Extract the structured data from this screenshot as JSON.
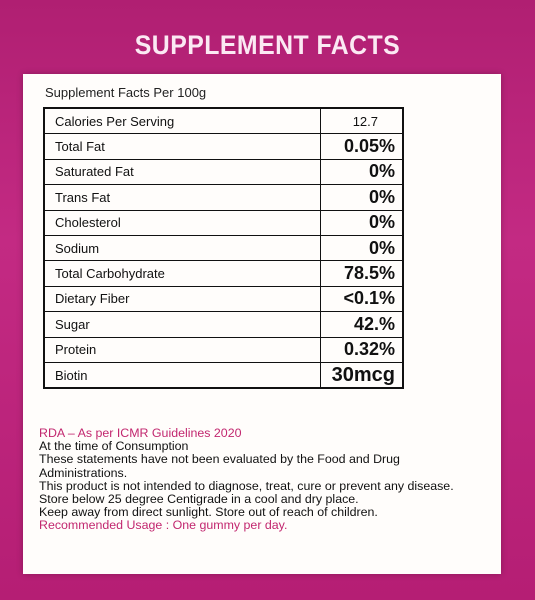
{
  "title": "SUPPLEMENT FACTS",
  "panel_header": "Supplement Facts Per 100g",
  "rows": [
    {
      "name": "Calories Per Serving",
      "value": "12.7"
    },
    {
      "name": "Total Fat",
      "value": "0.05%"
    },
    {
      "name": "Saturated Fat",
      "value": "0%"
    },
    {
      "name": "Trans Fat",
      "value": "0%"
    },
    {
      "name": "Cholesterol",
      "value": "0%"
    },
    {
      "name": "Sodium",
      "value": "0%"
    },
    {
      "name": "Total Carbohydrate",
      "value": "78.5%"
    },
    {
      "name": "Dietary Fiber",
      "value": "<0.1%"
    },
    {
      "name": "Sugar",
      "value": "42.%"
    },
    {
      "name": "Protein",
      "value": "0.32%"
    },
    {
      "name": "Biotin",
      "value": "30mcg"
    }
  ],
  "notes": {
    "rda": "RDA – As per ICMR Guidelines 2020",
    "line1": "At the time of Consumption",
    "line2": "These statements have not been evaluated by the Food and Drug Administrations.",
    "line3": "This product is not intended to diagnose, treat, cure or prevent any disease.",
    "line4": "Store below 25 degree Centigrade in a cool and dry place.",
    "line5": "Keep away from direct sunlight. Store out of reach of children.",
    "usage": "Recommended Usage : One gummy per day."
  },
  "colors": {
    "background": "#b8237a",
    "panel": "#fffdfb",
    "accent_text": "#c2276f"
  }
}
